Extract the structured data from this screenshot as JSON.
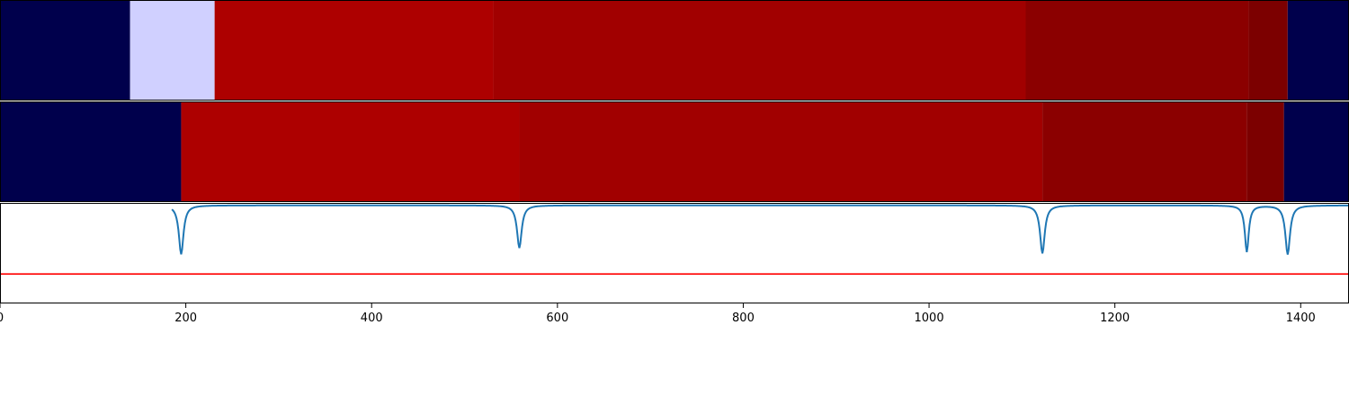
{
  "chart_data": [
    {
      "type": "heatmap",
      "segments": [
        {
          "start": 0,
          "end": 140,
          "color": "#00004c"
        },
        {
          "start": 140,
          "end": 231,
          "color": "#d0d0ff"
        },
        {
          "start": 231,
          "end": 531,
          "color": "#ad0000"
        },
        {
          "start": 531,
          "end": 1104,
          "color": "#a10000"
        },
        {
          "start": 1104,
          "end": 1344,
          "color": "#8b0000"
        },
        {
          "start": 1344,
          "end": 1386,
          "color": "#7c0000"
        },
        {
          "start": 1386,
          "end": 1452,
          "color": "#00004c"
        }
      ],
      "xlim": [
        0,
        1452
      ]
    },
    {
      "type": "heatmap",
      "segments": [
        {
          "start": 0,
          "end": 195,
          "color": "#00004c"
        },
        {
          "start": 195,
          "end": 559,
          "color": "#ad0000"
        },
        {
          "start": 559,
          "end": 1122,
          "color": "#a10000"
        },
        {
          "start": 1122,
          "end": 1342,
          "color": "#8b0000"
        },
        {
          "start": 1342,
          "end": 1382,
          "color": "#7c0000"
        },
        {
          "start": 1382,
          "end": 1452,
          "color": "#00004c"
        }
      ],
      "xlim": [
        0,
        1452
      ]
    },
    {
      "type": "line",
      "series": [
        {
          "color": "#1f77b4",
          "baseline": 0,
          "dips": [
            {
              "x": 195,
              "depth": 1.0,
              "width": 3
            },
            {
              "x": 559,
              "depth": 0.87,
              "width": 3
            },
            {
              "x": 1122,
              "depth": 0.98,
              "width": 3
            },
            {
              "x": 1342,
              "depth": 0.95,
              "width": 2.5
            },
            {
              "x": 1386,
              "depth": 1.0,
              "width": 3
            }
          ]
        },
        {
          "color": "#ff0000",
          "constant": -1.4
        }
      ],
      "xlim": [
        0,
        1452
      ],
      "ylim": [
        -2.0,
        0.05
      ]
    }
  ],
  "axis": {
    "ticks": [
      0,
      200,
      400,
      600,
      800,
      1000,
      1200,
      1400
    ],
    "tick_labels": [
      "0",
      "200",
      "400",
      "600",
      "800",
      "1000",
      "1200",
      "1400"
    ]
  }
}
